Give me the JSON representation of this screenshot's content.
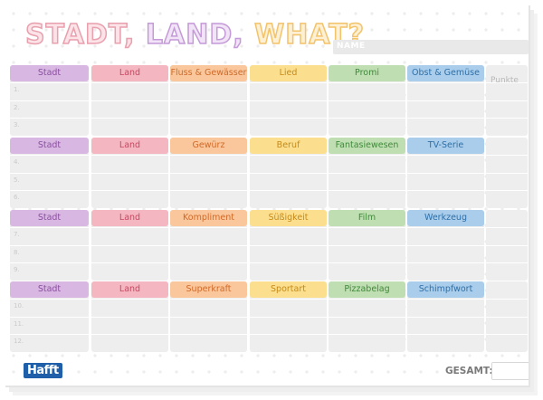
{
  "title": {
    "part1": "STADT,",
    "part2": "LAND,",
    "part3": "WHAT?"
  },
  "name_label": "NAME",
  "punkte_label": "Punkte",
  "gesamt_label": "GESAMT:",
  "logo": "Hafft",
  "colors": {
    "stadt": "#d8b8e2",
    "stadt_text": "#8a4f9e",
    "land": "#f4b6c1",
    "land_text": "#c84862",
    "orange": "#f9c79b",
    "orange_text": "#d06a2a",
    "yellow": "#fbdf8e",
    "yellow_text": "#c78a18",
    "green": "#bfdfb2",
    "green_text": "#3f8a3a",
    "blue": "#a9cdea",
    "blue_text": "#2f6fa8"
  },
  "sections": [
    {
      "headers": [
        "Stadt",
        "Land",
        "Fluss & Gewässer",
        "Lied",
        "Promi",
        "Obst & Gemüse"
      ],
      "rows": [
        "1.",
        "2.",
        "3."
      ]
    },
    {
      "headers": [
        "Stadt",
        "Land",
        "Gewürz",
        "Beruf",
        "Fantasiewesen",
        "TV-Serie"
      ],
      "rows": [
        "4.",
        "5.",
        "6."
      ]
    },
    {
      "headers": [
        "Stadt",
        "Land",
        "Kompliment",
        "Süßigkeit",
        "Film",
        "Werkzeug"
      ],
      "rows": [
        "7.",
        "8.",
        "9."
      ]
    },
    {
      "headers": [
        "Stadt",
        "Land",
        "Superkraft",
        "Sportart",
        "Pizzabelag",
        "Schimpfwort"
      ],
      "rows": [
        "10.",
        "11.",
        "12."
      ]
    }
  ]
}
